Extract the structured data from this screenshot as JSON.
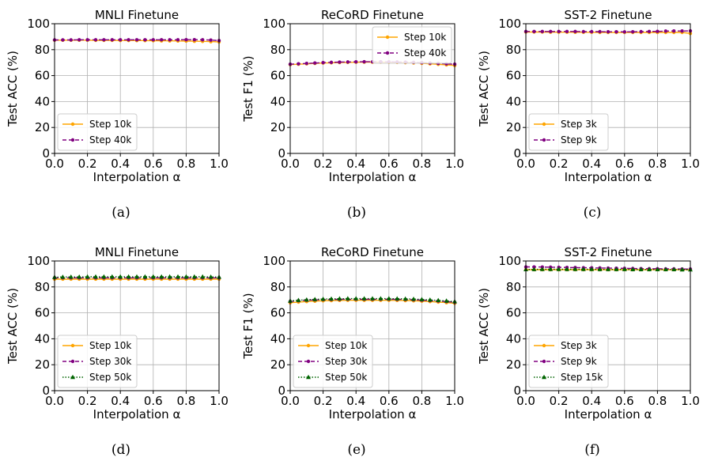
{
  "chart_data": [
    {
      "type": "line",
      "title": "MNLI Finetune",
      "caption": "(a)",
      "xlabel": "Interpolation α",
      "ylabel": "Test ACC (%)",
      "xlim": [
        0,
        1
      ],
      "ylim": [
        0,
        100
      ],
      "xticks": [
        "0.0",
        "0.2",
        "0.4",
        "0.6",
        "0.8",
        "1.0"
      ],
      "yticks": [
        "0",
        "20",
        "40",
        "60",
        "80",
        "100"
      ],
      "grid": true,
      "legend": "lower-left",
      "x": [
        0.0,
        0.05,
        0.1,
        0.15,
        0.2,
        0.25,
        0.3,
        0.35,
        0.4,
        0.45,
        0.5,
        0.55,
        0.6,
        0.65,
        0.7,
        0.75,
        0.8,
        0.85,
        0.9,
        0.95,
        1.0
      ],
      "series": [
        {
          "name": "Step 10k",
          "color": "#ffa500",
          "style": "solid",
          "marker": "circle",
          "values": [
            87.3,
            87.3,
            87.3,
            87.3,
            87.3,
            87.2,
            87.2,
            87.2,
            87.1,
            87.1,
            87.0,
            87.0,
            86.9,
            86.8,
            86.8,
            86.7,
            86.6,
            86.5,
            86.4,
            86.2,
            86.0
          ]
        },
        {
          "name": "Step 40k",
          "color": "#800080",
          "style": "dashed",
          "marker": "circle",
          "values": [
            87.5,
            87.5,
            87.5,
            87.6,
            87.6,
            87.6,
            87.6,
            87.6,
            87.6,
            87.6,
            87.6,
            87.6,
            87.6,
            87.6,
            87.6,
            87.6,
            87.7,
            87.7,
            87.6,
            87.4,
            87.0
          ]
        }
      ]
    },
    {
      "type": "line",
      "title": "ReCoRD Finetune",
      "caption": "(b)",
      "xlabel": "Interpolation α",
      "ylabel": "Test F1 (%)",
      "xlim": [
        0,
        1
      ],
      "ylim": [
        0,
        100
      ],
      "xticks": [
        "0.0",
        "0.2",
        "0.4",
        "0.6",
        "0.8",
        "1.0"
      ],
      "yticks": [
        "0",
        "20",
        "40",
        "60",
        "80",
        "100"
      ],
      "grid": true,
      "legend": "upper-right",
      "x": [
        0.0,
        0.05,
        0.1,
        0.15,
        0.2,
        0.25,
        0.3,
        0.35,
        0.4,
        0.45,
        0.5,
        0.55,
        0.6,
        0.65,
        0.7,
        0.75,
        0.8,
        0.85,
        0.9,
        0.95,
        1.0
      ],
      "series": [
        {
          "name": "Step 10k",
          "color": "#ffa500",
          "style": "solid",
          "marker": "circle",
          "values": [
            68.5,
            68.8,
            69.1,
            69.4,
            69.7,
            69.9,
            70.1,
            70.2,
            70.3,
            70.4,
            70.4,
            70.4,
            70.3,
            70.2,
            70.0,
            69.8,
            69.5,
            69.1,
            68.7,
            68.3,
            67.8
          ]
        },
        {
          "name": "Step 40k",
          "color": "#800080",
          "style": "dashed",
          "marker": "circle",
          "values": [
            68.8,
            69.1,
            69.4,
            69.7,
            70.0,
            70.2,
            70.4,
            70.5,
            70.6,
            70.7,
            70.7,
            70.7,
            70.6,
            70.5,
            70.4,
            70.2,
            70.0,
            69.7,
            69.4,
            69.1,
            68.8
          ]
        }
      ]
    },
    {
      "type": "line",
      "title": "SST-2 Finetune",
      "caption": "(c)",
      "xlabel": "Interpolation α",
      "ylabel": "Test ACC (%)",
      "xlim": [
        0,
        1
      ],
      "ylim": [
        0,
        100
      ],
      "xticks": [
        "0.0",
        "0.2",
        "0.4",
        "0.6",
        "0.8",
        "1.0"
      ],
      "yticks": [
        "0",
        "20",
        "40",
        "60",
        "80",
        "100"
      ],
      "grid": true,
      "legend": "lower-left",
      "x": [
        0.0,
        0.05,
        0.1,
        0.15,
        0.2,
        0.25,
        0.3,
        0.35,
        0.4,
        0.45,
        0.5,
        0.55,
        0.6,
        0.65,
        0.7,
        0.75,
        0.8,
        0.85,
        0.9,
        0.95,
        1.0
      ],
      "series": [
        {
          "name": "Step 3k",
          "color": "#ffa500",
          "style": "solid",
          "marker": "circle",
          "values": [
            93.6,
            93.6,
            93.6,
            93.5,
            93.5,
            93.5,
            93.4,
            93.4,
            93.4,
            93.3,
            93.3,
            93.3,
            93.3,
            93.3,
            93.3,
            93.3,
            93.3,
            93.3,
            93.3,
            93.3,
            92.5
          ]
        },
        {
          "name": "Step 9k",
          "color": "#800080",
          "style": "dashed",
          "marker": "circle",
          "values": [
            94.0,
            94.0,
            94.0,
            94.0,
            94.0,
            94.0,
            94.0,
            93.9,
            93.9,
            93.9,
            93.8,
            93.8,
            93.7,
            93.8,
            93.9,
            94.0,
            94.1,
            94.3,
            94.4,
            94.4,
            94.5
          ]
        }
      ]
    },
    {
      "type": "line",
      "title": "MNLI Finetune",
      "caption": "(d)",
      "xlabel": "Interpolation α",
      "ylabel": "Test ACC (%)",
      "xlim": [
        0,
        1
      ],
      "ylim": [
        0,
        100
      ],
      "xticks": [
        "0.0",
        "0.2",
        "0.4",
        "0.6",
        "0.8",
        "1.0"
      ],
      "yticks": [
        "0",
        "20",
        "40",
        "60",
        "80",
        "100"
      ],
      "grid": true,
      "legend": "lower-left",
      "x": [
        0.0,
        0.05,
        0.1,
        0.15,
        0.2,
        0.25,
        0.3,
        0.35,
        0.4,
        0.45,
        0.5,
        0.55,
        0.6,
        0.65,
        0.7,
        0.75,
        0.8,
        0.85,
        0.9,
        0.95,
        1.0
      ],
      "series": [
        {
          "name": "Step 10k",
          "color": "#ffa500",
          "style": "solid",
          "marker": "circle",
          "values": [
            86.0,
            86.0,
            86.0,
            86.0,
            86.0,
            86.0,
            86.0,
            86.0,
            86.0,
            86.0,
            86.0,
            86.0,
            86.0,
            86.0,
            86.0,
            86.0,
            86.0,
            86.0,
            86.0,
            86.0,
            86.0
          ]
        },
        {
          "name": "Step 30k",
          "color": "#800080",
          "style": "dashed",
          "marker": "circle",
          "values": [
            87.0,
            87.0,
            87.0,
            87.0,
            87.0,
            87.0,
            87.0,
            87.0,
            87.0,
            87.0,
            87.0,
            87.0,
            87.0,
            87.0,
            87.0,
            87.0,
            87.0,
            87.0,
            87.0,
            87.0,
            87.0
          ]
        },
        {
          "name": "Step 50k",
          "color": "#006400",
          "style": "dotted",
          "marker": "triangle",
          "values": [
            87.5,
            87.6,
            87.7,
            87.7,
            87.8,
            87.8,
            87.8,
            87.8,
            87.8,
            87.8,
            87.8,
            87.8,
            87.8,
            87.8,
            87.8,
            87.8,
            87.8,
            87.8,
            87.8,
            87.7,
            87.6
          ]
        }
      ]
    },
    {
      "type": "line",
      "title": "ReCoRD Finetune",
      "caption": "(e)",
      "xlabel": "Interpolation α",
      "ylabel": "Test F1 (%)",
      "xlim": [
        0,
        1
      ],
      "ylim": [
        0,
        100
      ],
      "xticks": [
        "0.0",
        "0.2",
        "0.4",
        "0.6",
        "0.8",
        "1.0"
      ],
      "yticks": [
        "0",
        "20",
        "40",
        "60",
        "80",
        "100"
      ],
      "grid": true,
      "legend": "lower-left",
      "x": [
        0.0,
        0.05,
        0.1,
        0.15,
        0.2,
        0.25,
        0.3,
        0.35,
        0.4,
        0.45,
        0.5,
        0.55,
        0.6,
        0.65,
        0.7,
        0.75,
        0.8,
        0.85,
        0.9,
        0.95,
        1.0
      ],
      "series": [
        {
          "name": "Step 10k",
          "color": "#ffa500",
          "style": "solid",
          "marker": "circle",
          "values": [
            67.8,
            68.3,
            68.7,
            69.0,
            69.3,
            69.5,
            69.6,
            69.7,
            69.7,
            69.7,
            69.7,
            69.7,
            69.7,
            69.6,
            69.5,
            69.3,
            69.0,
            68.7,
            68.3,
            67.9,
            67.4
          ]
        },
        {
          "name": "Step 30k",
          "color": "#800080",
          "style": "dashed",
          "marker": "circle",
          "values": [
            68.8,
            69.3,
            69.7,
            70.0,
            70.2,
            70.3,
            70.4,
            70.5,
            70.5,
            70.5,
            70.5,
            70.5,
            70.5,
            70.4,
            70.3,
            70.1,
            69.8,
            69.5,
            69.1,
            68.7,
            68.2
          ]
        },
        {
          "name": "Step 50k",
          "color": "#006400",
          "style": "dotted",
          "marker": "triangle",
          "values": [
            69.2,
            69.7,
            70.1,
            70.4,
            70.6,
            70.8,
            70.9,
            71.0,
            71.0,
            71.0,
            71.0,
            71.0,
            71.0,
            70.9,
            70.8,
            70.6,
            70.3,
            70.0,
            69.6,
            69.2,
            68.7
          ]
        }
      ]
    },
    {
      "type": "line",
      "title": "SST-2 Finetune",
      "caption": "(f)",
      "xlabel": "Interpolation α",
      "ylabel": "Test ACC (%)",
      "xlim": [
        0,
        1
      ],
      "ylim": [
        0,
        100
      ],
      "xticks": [
        "0.0",
        "0.2",
        "0.4",
        "0.6",
        "0.8",
        "1.0"
      ],
      "yticks": [
        "0",
        "20",
        "40",
        "60",
        "80",
        "100"
      ],
      "grid": true,
      "legend": "lower-left",
      "x": [
        0.0,
        0.05,
        0.1,
        0.15,
        0.2,
        0.25,
        0.3,
        0.35,
        0.4,
        0.45,
        0.5,
        0.55,
        0.6,
        0.65,
        0.7,
        0.75,
        0.8,
        0.85,
        0.9,
        0.95,
        1.0
      ],
      "series": [
        {
          "name": "Step 3k",
          "color": "#ffa500",
          "style": "solid",
          "marker": "circle",
          "values": [
            93.3,
            93.3,
            93.3,
            93.3,
            93.3,
            93.3,
            93.3,
            93.3,
            93.3,
            93.3,
            93.3,
            93.3,
            93.3,
            93.3,
            93.3,
            93.3,
            93.3,
            93.3,
            93.3,
            93.3,
            93.3
          ]
        },
        {
          "name": "Step 9k",
          "color": "#800080",
          "style": "dashed",
          "marker": "circle",
          "values": [
            95.4,
            95.4,
            95.3,
            95.2,
            95.1,
            95.0,
            94.9,
            94.8,
            94.7,
            94.6,
            94.5,
            94.4,
            94.3,
            94.2,
            94.1,
            94.0,
            94.0,
            93.9,
            93.9,
            93.8,
            93.8
          ]
        },
        {
          "name": "Step 15k",
          "color": "#006400",
          "style": "dotted",
          "marker": "triangle",
          "values": [
            93.4,
            93.5,
            93.6,
            93.6,
            93.6,
            93.6,
            93.6,
            93.6,
            93.6,
            93.5,
            93.5,
            93.5,
            93.5,
            93.4,
            93.4,
            93.4,
            93.4,
            93.4,
            93.4,
            93.3,
            93.3
          ]
        }
      ]
    }
  ]
}
